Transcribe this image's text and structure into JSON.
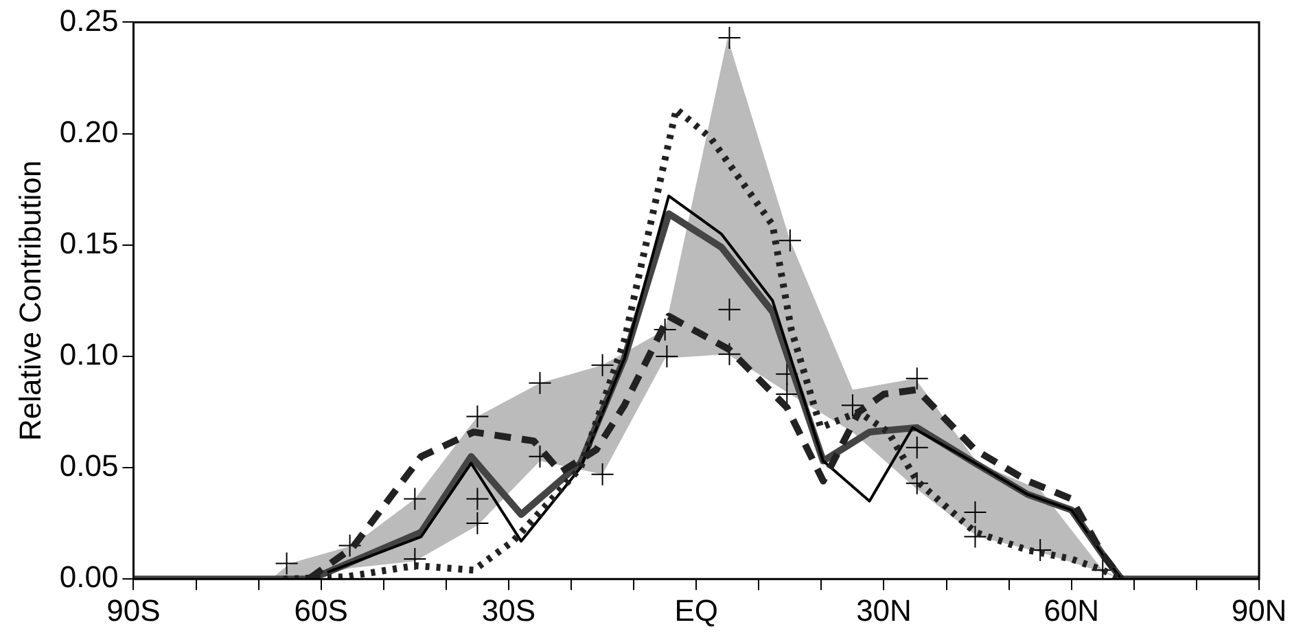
{
  "chart_data": {
    "type": "line",
    "ylabel": "Relative Contribution",
    "xlim": [
      -90,
      90
    ],
    "ylim": [
      0,
      0.25
    ],
    "xticks": [
      {
        "value": -90,
        "label": "90S"
      },
      {
        "value": -80,
        "label": null
      },
      {
        "value": -70,
        "label": null
      },
      {
        "value": -60,
        "label": "60S"
      },
      {
        "value": -50,
        "label": null
      },
      {
        "value": -40,
        "label": null
      },
      {
        "value": -30,
        "label": "30S"
      },
      {
        "value": -20,
        "label": null
      },
      {
        "value": -10,
        "label": null
      },
      {
        "value": 0,
        "label": "EQ"
      },
      {
        "value": 10,
        "label": null
      },
      {
        "value": 20,
        "label": null
      },
      {
        "value": 30,
        "label": "30N"
      },
      {
        "value": 40,
        "label": null
      },
      {
        "value": 50,
        "label": null
      },
      {
        "value": 60,
        "label": "60N"
      },
      {
        "value": 70,
        "label": null
      },
      {
        "value": 80,
        "label": null
      },
      {
        "value": 90,
        "label": "90N"
      }
    ],
    "yticks": [
      {
        "value": 0,
        "label": "0.00"
      },
      {
        "value": 0.05,
        "label": "0.05"
      },
      {
        "value": 0.1,
        "label": "0.10"
      },
      {
        "value": 0.15,
        "label": "0.15"
      },
      {
        "value": 0.2,
        "label": "0.20"
      },
      {
        "value": 0.25,
        "label": "0.25"
      }
    ],
    "grid": false,
    "legend": false,
    "series": [
      {
        "color": "#bbbbbb",
        "marker": "none",
        "x": [
          -68,
          -65,
          -55,
          -45,
          -35,
          -25,
          -15,
          -5,
          5,
          15,
          25,
          35,
          45,
          55,
          65,
          68
        ],
        "values": [
          null,
          null,
          null,
          null,
          null,
          null,
          null,
          null,
          null,
          null,
          null,
          null,
          null,
          null,
          null,
          null
        ],
        "lower": [
          0,
          0,
          0.005,
          0.008,
          0.024,
          0.053,
          0.047,
          0.099,
          0.101,
          0.083,
          0.066,
          0.041,
          0.019,
          0.012,
          0.003,
          0
        ],
        "upper": [
          0,
          0.007,
          0.015,
          0.036,
          0.073,
          0.088,
          0.096,
          0.112,
          0.243,
          0.152,
          0.085,
          0.09,
          0.052,
          0.04,
          0.004,
          0
        ]
      },
      {
        "color": "#222222",
        "marker": "none",
        "line_style": "dashed",
        "x": [
          -62,
          -55,
          -44,
          -35.6,
          -26,
          -21.7,
          -16,
          -11.5,
          -4.4,
          5.3,
          14.5,
          20.3,
          26,
          30,
          35.3,
          44.6,
          53,
          60,
          65,
          68
        ],
        "values": [
          0,
          0.014,
          0.055,
          0.066,
          0.062,
          0.048,
          0.058,
          0.078,
          0.118,
          0.103,
          0.077,
          0.044,
          0.075,
          0.083,
          0.085,
          0.058,
          0.044,
          0.036,
          0.011,
          0
        ]
      },
      {
        "color": "#222222",
        "marker": "none",
        "line_style": "dotted",
        "x": [
          -66,
          -56,
          -45,
          -35.6,
          -29.3,
          -18.5,
          -11.5,
          -3.2,
          2.3,
          12.2,
          15.2,
          19.9,
          26,
          30.7,
          35.3,
          44.6,
          53,
          60,
          65,
          68
        ],
        "values": [
          0,
          0.001,
          0.006,
          0.004,
          0.017,
          0.05,
          0.107,
          0.211,
          0.198,
          0.159,
          0.112,
          0.068,
          0.075,
          0.066,
          0.044,
          0.021,
          0.013,
          0.009,
          0.004,
          0
        ]
      },
      {
        "color": "#000000",
        "marker": "none",
        "line_style": "solid",
        "x": [
          -59,
          -44,
          -36,
          -28,
          -18.5,
          -11.5,
          -4.4,
          4,
          12.2,
          20.3,
          27.7,
          34.6,
          44.6,
          53,
          60,
          65,
          68
        ],
        "values": [
          0.003,
          0.019,
          0.052,
          0.017,
          0.05,
          0.099,
          0.172,
          0.155,
          0.125,
          0.053,
          0.035,
          0.068,
          0.052,
          0.038,
          0.031,
          0.011,
          0
        ]
      },
      {
        "color": "#444444",
        "marker": "none",
        "line_style": "solid",
        "x": [
          -90,
          -62,
          -59,
          -44,
          -36,
          -28,
          -18.5,
          -11.5,
          -4.4,
          4,
          12.2,
          20.3,
          27.7,
          35.3,
          44.6,
          53,
          60,
          65,
          68,
          90
        ],
        "values": [
          0,
          0,
          0.003,
          0.021,
          0.055,
          0.029,
          0.052,
          0.099,
          0.164,
          0.149,
          0.12,
          0.053,
          0.066,
          0.068,
          0.052,
          0.038,
          0.031,
          0.011,
          0,
          0
        ]
      },
      {
        "type": "scatter",
        "color": "#000000",
        "marker": "cross",
        "x": [
          -65.5,
          -55.4,
          -45,
          -45,
          -35,
          -35,
          -35,
          -25,
          -25,
          -15,
          -15,
          -5,
          -4.7,
          5.3,
          5.3,
          5.3,
          15,
          14.5,
          14.5,
          25,
          35.3,
          35.3,
          35.3,
          44.6,
          44.6,
          55,
          65
        ],
        "values": [
          0.007,
          0.015,
          0.036,
          0.009,
          0.073,
          0.036,
          0.025,
          0.088,
          0.055,
          0.096,
          0.047,
          0.112,
          0.1,
          0.243,
          0.121,
          0.101,
          0.152,
          0.092,
          0.083,
          0.078,
          0.09,
          0.059,
          0.043,
          0.03,
          0.019,
          0.013,
          0.004
        ]
      }
    ]
  }
}
